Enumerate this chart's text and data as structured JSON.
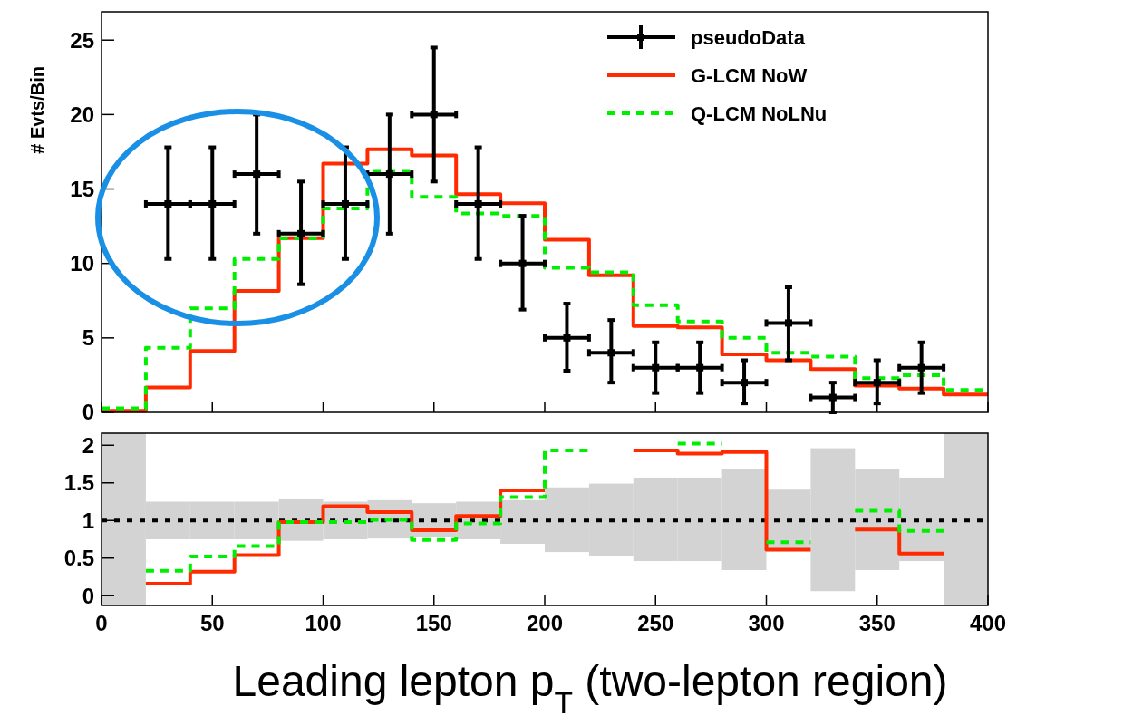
{
  "chart_data": [
    {
      "type": "histogram",
      "ylabel": "# Evts/Bin",
      "xlim": [
        0,
        400
      ],
      "ylim": [
        0,
        26.9
      ],
      "xticks": [
        {
          "value": 0,
          "label": null
        },
        {
          "value": 50,
          "label": null
        },
        {
          "value": 100,
          "label": null
        },
        {
          "value": 150,
          "label": null
        },
        {
          "value": 200,
          "label": null
        },
        {
          "value": 250,
          "label": null
        },
        {
          "value": 300,
          "label": null
        },
        {
          "value": 350,
          "label": null
        },
        {
          "value": 400,
          "label": null
        }
      ],
      "yticks": [
        0,
        5,
        10,
        15,
        20,
        25
      ],
      "tick_labels": "y",
      "legend": "top right",
      "bins": [
        0,
        20,
        40,
        60,
        80,
        100,
        120,
        140,
        160,
        180,
        200,
        220,
        240,
        260,
        280,
        300,
        320,
        340,
        360,
        380,
        400
      ],
      "series": [
        {
          "name": "pseudoData",
          "type": "scatter",
          "color": "#000000",
          "marker": "square",
          "x": [
            30,
            50,
            70,
            90,
            110,
            130,
            150,
            170,
            190,
            210,
            230,
            250,
            270,
            290,
            310,
            330,
            350,
            370
          ],
          "values": [
            14,
            14,
            16,
            12,
            14,
            16,
            20,
            14,
            10,
            5,
            4,
            3,
            3,
            2,
            6,
            1,
            2,
            3
          ],
          "errors": [
            [
              10.3,
              17.8
            ],
            [
              10.3,
              17.8
            ],
            [
              12,
              20
            ],
            [
              8.6,
              15.5
            ],
            [
              10.3,
              17.8
            ],
            [
              12,
              20
            ],
            [
              15.5,
              24.5
            ],
            [
              10.3,
              17.8
            ],
            [
              6.9,
              13.2
            ],
            [
              2.8,
              7.3
            ],
            [
              2,
              6.2
            ],
            [
              1.3,
              4.7
            ],
            [
              1.3,
              4.7
            ],
            [
              0.6,
              3.5
            ],
            [
              3.5,
              8.4
            ],
            [
              0,
              2
            ],
            [
              0.6,
              3.5
            ],
            [
              1.3,
              4.7
            ]
          ],
          "xerrors": [
            10,
            10,
            10,
            10,
            10,
            10,
            10,
            10,
            10,
            10,
            10,
            10,
            10,
            10,
            10,
            10,
            10,
            10
          ]
        },
        {
          "name": "G-LCM NoW",
          "color": "#ff2a00",
          "line_style": "solid",
          "values": [
            0.1,
            1.67,
            4.12,
            8.15,
            11.7,
            16.7,
            17.66,
            17.25,
            14.65,
            14.05,
            11.6,
            9.2,
            5.8,
            5.7,
            3.9,
            3.5,
            2.9,
            1.8,
            1.6,
            1.2
          ]
        },
        {
          "name": "Q-LCM NoLNu",
          "color": "#00ee00",
          "line_style": "dashed",
          "values": [
            0.28,
            4.33,
            6.99,
            10.3,
            11.69,
            13.7,
            16.16,
            14.47,
            13.36,
            13.19,
            9.7,
            9.4,
            7.2,
            6.1,
            5.0,
            4.0,
            3.75,
            2.3,
            2.5,
            1.5
          ]
        }
      ]
    },
    {
      "type": "line",
      "xlabel": "Leading lepton p$_{T}$  (two-lepton region)",
      "xlim": [
        0,
        400
      ],
      "ylim": [
        -0.13,
        2.16
      ],
      "xticks": [
        0,
        50,
        100,
        150,
        200,
        250,
        300,
        350,
        400
      ],
      "yticks": [
        0,
        0.5,
        1,
        1.5,
        2
      ],
      "ref_lines": [
        {
          "axis": "y",
          "value": 1,
          "color": "#000000",
          "line_style": "dotted"
        }
      ],
      "series": [
        {
          "type": "bar",
          "color": "#d3d3d3",
          "x": [
            10,
            30,
            50,
            70,
            90,
            110,
            130,
            150,
            170,
            190,
            210,
            230,
            250,
            270,
            290,
            310,
            330,
            350,
            370,
            390
          ],
          "base": [
            -0.13,
            0.75,
            0.75,
            0.75,
            0.73,
            0.75,
            0.76,
            0.78,
            0.75,
            0.69,
            0.58,
            0.53,
            0.46,
            0.46,
            0.34,
            0.59,
            0.06,
            0.34,
            0.46,
            -0.13
          ],
          "values": [
            2.29,
            0.5,
            0.5,
            0.5,
            0.55,
            0.5,
            0.51,
            0.45,
            0.5,
            0.58,
            0.86,
            0.96,
            1.11,
            1.11,
            1.35,
            0.82,
            1.9,
            1.35,
            1.11,
            2.29
          ]
        },
        {
          "color": "#ff2a00",
          "line_style": "solid",
          "x": [
            20,
            40,
            40,
            60,
            60,
            80,
            80,
            100,
            100,
            120,
            120,
            140,
            140,
            160,
            160,
            180,
            180,
            200
          ],
          "values": [
            0.16,
            0.16,
            0.32,
            0.32,
            0.54,
            0.54,
            0.98,
            0.98,
            1.19,
            1.19,
            1.11,
            1.11,
            0.87,
            0.87,
            1.06,
            1.06,
            1.4,
            1.4
          ]
        },
        {
          "color": "#ff2a00",
          "line_style": "solid",
          "x": [
            240,
            260,
            260,
            280,
            280,
            300,
            300,
            320
          ],
          "values": [
            1.93,
            1.93,
            1.89,
            1.89,
            1.91,
            1.91,
            0.61,
            0.61
          ]
        },
        {
          "color": "#ff2a00",
          "line_style": "solid",
          "x": [
            340,
            360,
            360,
            380
          ],
          "values": [
            0.88,
            0.88,
            0.56,
            0.56
          ]
        },
        {
          "color": "#00ee00",
          "line_style": "dashed",
          "x": [
            20,
            40,
            40,
            60,
            60,
            80,
            80,
            120,
            120,
            140,
            140,
            160,
            160,
            180,
            180,
            200,
            200,
            220
          ],
          "values": [
            0.33,
            0.33,
            0.52,
            0.52,
            0.66,
            0.66,
            0.98,
            0.98,
            1.01,
            1.01,
            0.74,
            0.74,
            0.96,
            0.96,
            1.31,
            1.31,
            1.93,
            1.93
          ]
        },
        {
          "color": "#00ee00",
          "line_style": "dashed",
          "x": [
            260,
            280
          ],
          "values": [
            2.02,
            2.02
          ]
        },
        {
          "color": "#00ee00",
          "line_style": "dashed",
          "x": [
            300,
            320
          ],
          "values": [
            0.71,
            0.71
          ]
        },
        {
          "color": "#00ee00",
          "line_style": "dashed",
          "x": [
            340,
            360,
            360,
            380
          ],
          "values": [
            1.13,
            1.13,
            0.86,
            0.86
          ]
        }
      ]
    }
  ]
}
